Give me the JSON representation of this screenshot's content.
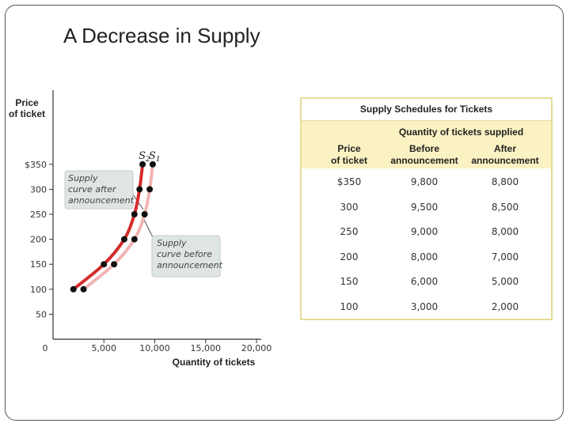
{
  "slide": {
    "title": "A Decrease in Supply"
  },
  "chart_data": {
    "type": "line",
    "xlabel": "Quantity of tickets",
    "ylabel_line1": "Price",
    "ylabel_line2": "of ticket",
    "xlim": [
      0,
      20000
    ],
    "ylim": [
      0,
      375
    ],
    "x_ticks": [
      {
        "value": 0,
        "label": "0"
      },
      {
        "value": 5000,
        "label": "5,000"
      },
      {
        "value": 10000,
        "label": "10,000"
      },
      {
        "value": 15000,
        "label": "15,000"
      },
      {
        "value": 20000,
        "label": "20,000"
      }
    ],
    "y_ticks": [
      {
        "value": 350,
        "label": "$350"
      },
      {
        "value": 300,
        "label": "300"
      },
      {
        "value": 250,
        "label": "250"
      },
      {
        "value": 200,
        "label": "200"
      },
      {
        "value": 150,
        "label": "150"
      },
      {
        "value": 100,
        "label": "100"
      },
      {
        "value": 50,
        "label": "50"
      }
    ],
    "series": [
      {
        "name": "S2",
        "label_main": "S",
        "label_sub": "2",
        "color": "#d42b2b",
        "points": [
          [
            2000,
            100
          ],
          [
            5000,
            150
          ],
          [
            7000,
            200
          ],
          [
            8000,
            250
          ],
          [
            8500,
            300
          ],
          [
            8800,
            350
          ]
        ]
      },
      {
        "name": "S1",
        "label_main": "S",
        "label_sub": "1",
        "color": "#f2b3b3",
        "points": [
          [
            3000,
            100
          ],
          [
            6000,
            150
          ],
          [
            8000,
            200
          ],
          [
            9000,
            250
          ],
          [
            9500,
            300
          ],
          [
            9800,
            350
          ]
        ]
      }
    ],
    "annotations": [
      {
        "lines": [
          "Supply",
          "curve after",
          "announcement"
        ],
        "target_series": "S2"
      },
      {
        "lines": [
          "Supply",
          "curve before",
          "announcement"
        ],
        "target_series": "S1"
      }
    ]
  },
  "table": {
    "title": "Supply Schedules for Tickets",
    "group_header": "Quantity of tickets supplied",
    "columns": [
      [
        "Price",
        "of ticket"
      ],
      [
        "Before",
        "announcement"
      ],
      [
        "After",
        "announcement"
      ]
    ],
    "rows": [
      [
        "$350",
        "9,800",
        "8,800"
      ],
      [
        "300",
        "9,500",
        "8,500"
      ],
      [
        "250",
        "9,000",
        "8,000"
      ],
      [
        "200",
        "8,000",
        "7,000"
      ],
      [
        "150",
        "6,000",
        "5,000"
      ],
      [
        "100",
        "3,000",
        "2,000"
      ]
    ],
    "border_color": "#e6dc98",
    "header_fill": "#fbf2c3"
  }
}
